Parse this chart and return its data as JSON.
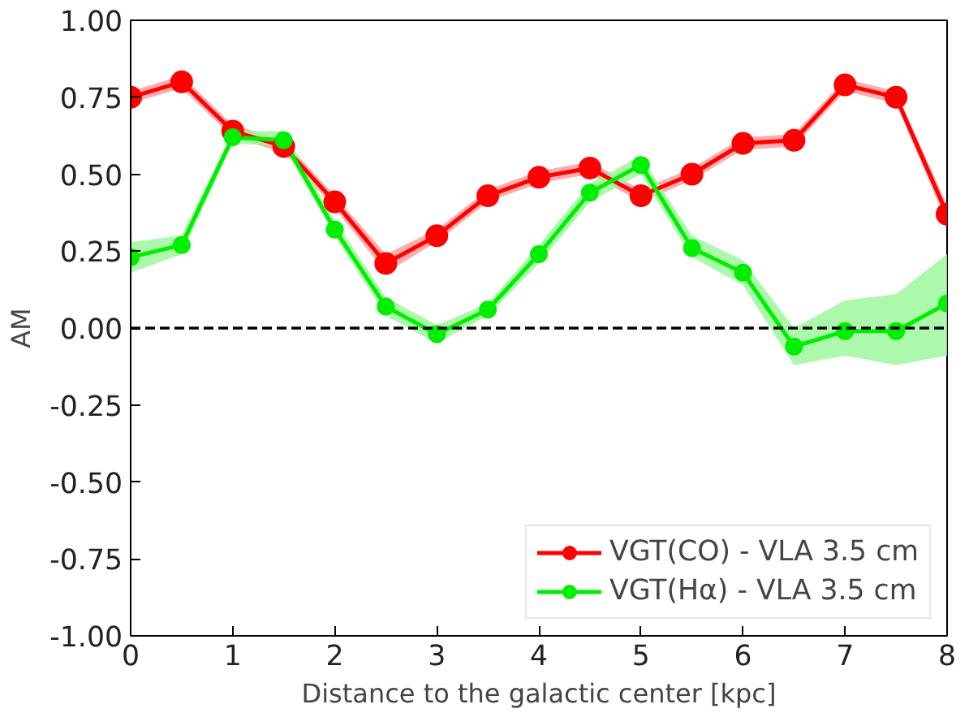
{
  "chart_data": {
    "type": "line",
    "xlabel": "Distance to the galactic center [kpc]",
    "ylabel": "AM",
    "x": [
      0,
      0.5,
      1,
      1.5,
      2,
      2.5,
      3,
      3.5,
      4,
      4.5,
      5,
      5.5,
      6,
      6.5,
      7,
      7.5,
      8
    ],
    "series": [
      {
        "name": "VGT(CO) - VLA 3.5 cm",
        "color": "#ff0000",
        "values": [
          0.75,
          0.8,
          0.64,
          0.59,
          0.41,
          0.21,
          0.3,
          0.43,
          0.49,
          0.52,
          0.43,
          0.5,
          0.6,
          0.61,
          0.79,
          0.75,
          0.37
        ],
        "lower": [
          0.73,
          0.78,
          0.62,
          0.57,
          0.39,
          0.18,
          0.28,
          0.41,
          0.47,
          0.5,
          0.41,
          0.48,
          0.58,
          0.59,
          0.77,
          0.73,
          0.34
        ],
        "upper": [
          0.77,
          0.82,
          0.66,
          0.61,
          0.43,
          0.24,
          0.32,
          0.45,
          0.51,
          0.54,
          0.45,
          0.52,
          0.62,
          0.63,
          0.81,
          0.77,
          0.4
        ]
      },
      {
        "name": "VGT(Hα) - VLA 3.5 cm",
        "color": "#00ee00",
        "values": [
          0.23,
          0.27,
          0.62,
          0.61,
          0.32,
          0.07,
          -0.02,
          0.06,
          0.24,
          0.44,
          0.53,
          0.26,
          0.18,
          -0.06,
          -0.01,
          -0.01,
          0.08
        ],
        "lower": [
          0.18,
          0.24,
          0.6,
          0.59,
          0.3,
          0.04,
          -0.05,
          0.04,
          0.21,
          0.41,
          0.5,
          0.23,
          0.14,
          -0.12,
          -0.09,
          -0.12,
          -0.09
        ],
        "upper": [
          0.28,
          0.3,
          0.64,
          0.64,
          0.35,
          0.1,
          0.01,
          0.08,
          0.27,
          0.47,
          0.56,
          0.3,
          0.22,
          0.0,
          0.09,
          0.11,
          0.24
        ]
      }
    ],
    "xlim": [
      0,
      8
    ],
    "ylim": [
      -1,
      1
    ],
    "xticks": [
      0,
      1,
      2,
      3,
      4,
      5,
      6,
      7,
      8
    ],
    "yticks": [
      {
        "value": -1,
        "label": "-1.00"
      },
      {
        "value": -0.75,
        "label": "-0.75"
      },
      {
        "value": -0.5,
        "label": "-0.50"
      },
      {
        "value": -0.25,
        "label": "-0.25"
      },
      {
        "value": 0,
        "label": "0.00"
      },
      {
        "value": 0.25,
        "label": "0.25"
      },
      {
        "value": 0.5,
        "label": "0.50"
      },
      {
        "value": 0.75,
        "label": "0.75"
      },
      {
        "value": 1,
        "label": "1.00"
      }
    ],
    "ref_lines": [
      {
        "axis": "y",
        "value": 0,
        "label": null,
        "color": "#000000",
        "line_style": "dashed"
      }
    ],
    "marker": "circle",
    "legend": "bottom right",
    "grid": false
  }
}
